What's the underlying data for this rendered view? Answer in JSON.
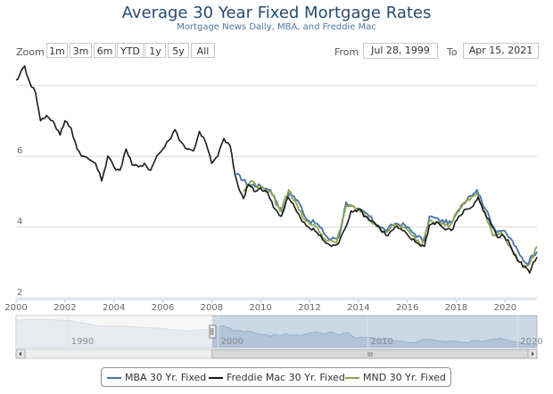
{
  "chart_data": {
    "type": "line",
    "title": "Average 30 Year Fixed Mortgage Rates",
    "subtitle": "Mortgage News Daily, MBA, and Freddie Mac",
    "x_range": [
      2000,
      2021.3
    ],
    "x_ticks": [
      "2000",
      "2002",
      "2004",
      "2006",
      "2008",
      "2010",
      "2012",
      "2014",
      "2016",
      "2018",
      "2020"
    ],
    "x_tick_values": [
      2000,
      2002,
      2004,
      2006,
      2008,
      2010,
      2012,
      2014,
      2016,
      2018,
      2020
    ],
    "y_ticks": [
      "2",
      "4",
      "6"
    ],
    "y_tick_values": [
      2,
      4,
      6
    ],
    "ylim": [
      2,
      8.6
    ],
    "series": [
      {
        "name": "MBA 30 Yr. Fixed",
        "color": "#4572a7",
        "x": [
          2009.0,
          2009.5,
          2010.0,
          2010.4,
          2010.9,
          2011.2,
          2011.6,
          2011.9,
          2012.3,
          2012.8,
          2013.2,
          2013.5,
          2013.9,
          2014.3,
          2014.8,
          2015.1,
          2015.5,
          2015.9,
          2016.3,
          2016.7,
          2016.9,
          2017.3,
          2017.8,
          2018.2,
          2018.5,
          2018.85,
          2019.2,
          2019.6,
          2019.9,
          2020.3,
          2020.6,
          2020.9,
          2021.1,
          2021.3
        ],
        "y": [
          5.5,
          5.2,
          5.15,
          5.05,
          4.4,
          5.0,
          4.65,
          4.2,
          4.1,
          3.65,
          3.7,
          4.7,
          4.5,
          4.4,
          4.05,
          3.9,
          4.1,
          4.05,
          3.8,
          3.6,
          4.3,
          4.2,
          4.1,
          4.6,
          4.85,
          5.05,
          4.5,
          3.9,
          3.9,
          3.6,
          3.2,
          2.95,
          3.2,
          3.3
        ]
      },
      {
        "name": "Freddie Mac 30 Yr. Fixed",
        "color": "#1a1a1a",
        "x": [
          2000.0,
          2000.15,
          2000.35,
          2000.55,
          2000.8,
          2001.0,
          2001.25,
          2001.5,
          2001.8,
          2002.0,
          2002.25,
          2002.5,
          2002.75,
          2003.0,
          2003.25,
          2003.5,
          2003.75,
          2004.0,
          2004.25,
          2004.5,
          2004.75,
          2005.0,
          2005.25,
          2005.5,
          2005.75,
          2006.0,
          2006.25,
          2006.5,
          2006.75,
          2007.0,
          2007.25,
          2007.5,
          2007.75,
          2008.0,
          2008.25,
          2008.5,
          2008.75,
          2008.95,
          2009.1,
          2009.3,
          2009.5,
          2009.75,
          2010.0,
          2010.3,
          2010.6,
          2010.85,
          2011.1,
          2011.4,
          2011.7,
          2011.95,
          2012.3,
          2012.6,
          2012.9,
          2013.2,
          2013.45,
          2013.7,
          2014.0,
          2014.3,
          2014.6,
          2014.9,
          2015.2,
          2015.5,
          2015.8,
          2016.1,
          2016.4,
          2016.7,
          2016.9,
          2017.2,
          2017.5,
          2017.8,
          2018.1,
          2018.4,
          2018.7,
          2018.9,
          2019.1,
          2019.4,
          2019.7,
          2019.95,
          2020.2,
          2020.5,
          2020.8,
          2021.0,
          2021.15,
          2021.3
        ],
        "y": [
          8.15,
          8.3,
          8.55,
          8.1,
          7.8,
          7.0,
          7.15,
          7.0,
          6.6,
          7.0,
          6.8,
          6.2,
          6.0,
          5.9,
          5.8,
          5.3,
          6.0,
          5.7,
          5.6,
          6.2,
          5.75,
          5.7,
          5.8,
          5.6,
          6.0,
          6.2,
          6.45,
          6.75,
          6.4,
          6.2,
          6.15,
          6.7,
          6.4,
          5.8,
          6.0,
          6.5,
          6.3,
          5.5,
          5.1,
          4.8,
          5.2,
          5.0,
          5.1,
          4.95,
          4.5,
          4.3,
          4.85,
          4.55,
          4.15,
          4.0,
          3.85,
          3.6,
          3.45,
          3.55,
          3.95,
          4.45,
          4.5,
          4.3,
          4.15,
          3.95,
          3.75,
          4.0,
          3.9,
          3.7,
          3.55,
          3.45,
          4.05,
          4.15,
          3.95,
          3.9,
          4.3,
          4.5,
          4.6,
          4.85,
          4.45,
          4.1,
          3.7,
          3.75,
          3.5,
          3.05,
          2.9,
          2.7,
          3.0,
          3.15
        ]
      },
      {
        "name": "MND 30 Yr. Fixed",
        "color": "#89a54e",
        "x": [
          2009.3,
          2009.6,
          2010.0,
          2010.4,
          2010.8,
          2011.15,
          2011.5,
          2011.8,
          2012.2,
          2012.7,
          2013.1,
          2013.5,
          2013.85,
          2014.25,
          2014.75,
          2015.1,
          2015.45,
          2015.85,
          2016.2,
          2016.6,
          2016.9,
          2017.3,
          2017.7,
          2018.1,
          2018.4,
          2018.85,
          2019.15,
          2019.5,
          2019.85,
          2020.2,
          2020.5,
          2020.8,
          2021.0,
          2021.3
        ],
        "y": [
          5.0,
          5.3,
          5.1,
          5.0,
          4.45,
          5.05,
          4.6,
          4.2,
          4.05,
          3.6,
          3.55,
          4.6,
          4.55,
          4.35,
          4.0,
          3.85,
          4.05,
          4.0,
          3.75,
          3.5,
          4.2,
          4.15,
          4.0,
          4.5,
          4.7,
          4.95,
          4.4,
          3.75,
          3.85,
          3.45,
          3.1,
          2.85,
          2.95,
          3.45
        ]
      }
    ],
    "navigator": {
      "x_ticks": [
        "1990",
        "2000",
        "2010",
        "2020"
      ],
      "x_tick_values": [
        1990,
        2000,
        2010,
        2020
      ],
      "x_range": [
        1986.5,
        2021.3
      ],
      "selected": [
        1999.6,
        2021.3
      ],
      "scrollbar_grip": "III"
    },
    "legend_position": "bottom-center"
  },
  "toolbar": {
    "zoom_label": "Zoom",
    "zoom_buttons": [
      "1m",
      "3m",
      "6m",
      "YTD",
      "1y",
      "5y",
      "All"
    ],
    "from_label": "From",
    "from_value": "Jul 28, 1999",
    "to_label": "To",
    "to_value": "Apr 15, 2021"
  }
}
